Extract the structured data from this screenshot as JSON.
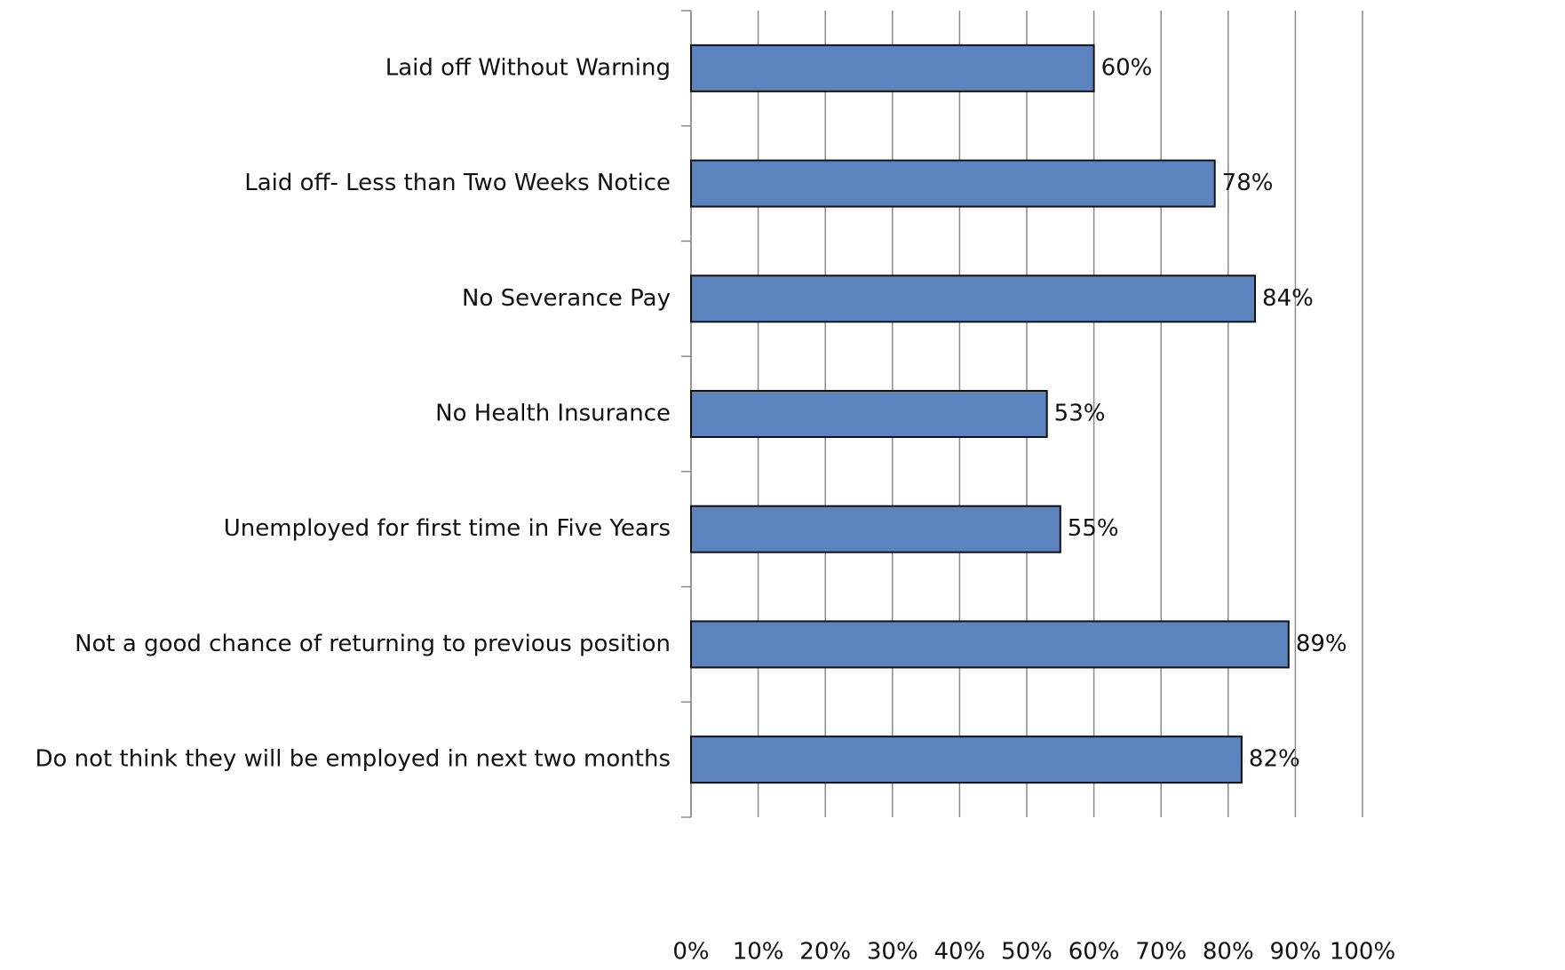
{
  "chart_data": {
    "type": "bar",
    "orientation": "horizontal",
    "categories": [
      "Laid off Without Warning",
      "Laid off- Less than Two Weeks Notice",
      "No Severance Pay",
      "No Health Insurance",
      "Unemployed for first time in Five Years",
      "Not a good chance of returning to previous position",
      "Do not think they will be employed in next two months"
    ],
    "values": [
      60,
      78,
      84,
      53,
      55,
      89,
      82
    ],
    "value_labels": [
      "60%",
      "78%",
      "84%",
      "53%",
      "55%",
      "89%",
      "82%"
    ],
    "color": "#5b83be",
    "xlim": [
      0,
      100
    ],
    "xticks": [
      {
        "value": 0,
        "label": "0%"
      },
      {
        "value": 10,
        "label": "10%"
      },
      {
        "value": 20,
        "label": "20%"
      },
      {
        "value": 30,
        "label": "30%"
      },
      {
        "value": 40,
        "label": "40%"
      },
      {
        "value": 50,
        "label": "50%"
      },
      {
        "value": 60,
        "label": "60%"
      },
      {
        "value": 70,
        "label": "70%"
      },
      {
        "value": 80,
        "label": "80%"
      },
      {
        "value": 90,
        "label": "90%"
      },
      {
        "value": 100,
        "label": "100%"
      }
    ],
    "grid": true
  }
}
